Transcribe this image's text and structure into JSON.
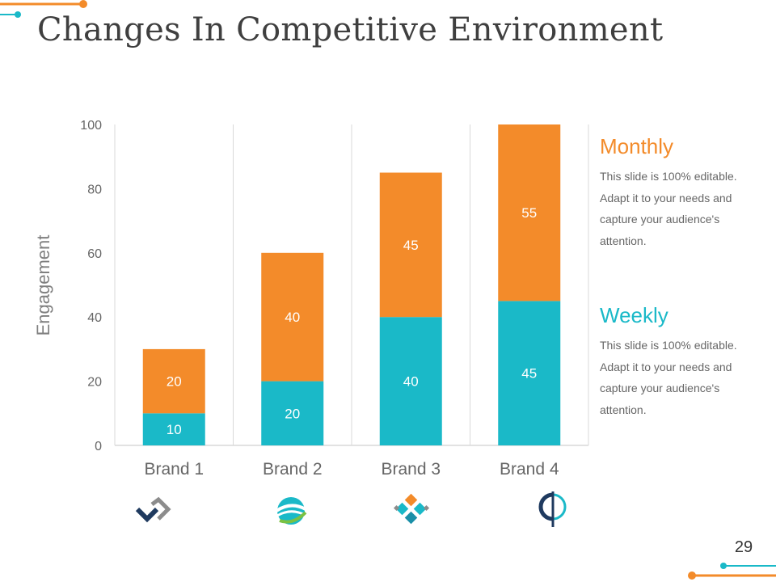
{
  "slide": {
    "title": "Changes In Competitive Environment",
    "page_number": "29"
  },
  "colors": {
    "monthly": "#f38b2a",
    "weekly": "#1ab9c8",
    "grid": "#d9d9d9",
    "axis_text": "#666666"
  },
  "chart_data": {
    "type": "bar",
    "stacked": true,
    "categories": [
      "Brand 1",
      "Brand 2",
      "Brand 3",
      "Brand 4"
    ],
    "series": [
      {
        "name": "Weekly",
        "values": [
          10,
          20,
          40,
          45
        ]
      },
      {
        "name": "Monthly",
        "values": [
          20,
          40,
          45,
          55
        ]
      }
    ],
    "ylabel": "Engagement",
    "ylim": [
      0,
      100
    ],
    "yticks": [
      0,
      20,
      40,
      60,
      80,
      100
    ],
    "data_labels": true,
    "grid": "vertical category separators"
  },
  "legend_notes": [
    {
      "heading": "Monthly",
      "text": "This slide is 100% editable. Adapt it to your needs and capture your audience's attention."
    },
    {
      "heading": "Weekly",
      "text": "This slide is 100% editable. Adapt it to your needs and capture your audience's attention."
    }
  ],
  "brand_logos": [
    "diamond-arrow-logo",
    "globe-swoosh-logo",
    "diamond-grid-logo",
    "split-circle-logo"
  ]
}
